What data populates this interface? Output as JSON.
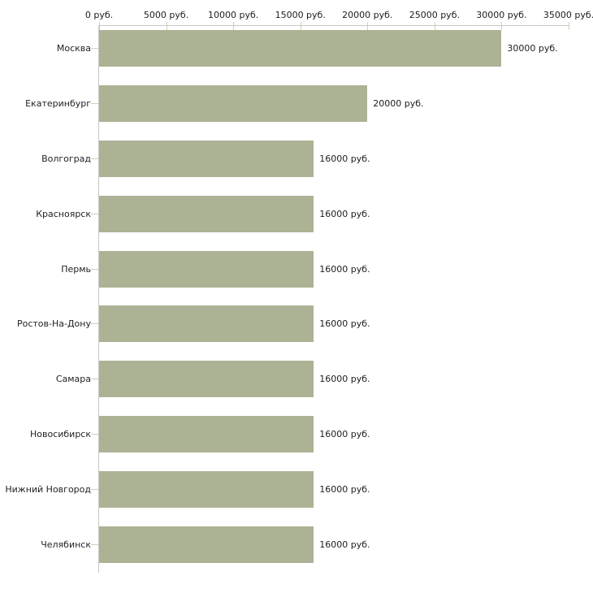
{
  "chart_data": {
    "type": "bar",
    "orientation": "horizontal",
    "categories": [
      "Москва",
      "Екатеринбург",
      "Волгоград",
      "Красноярск",
      "Пермь",
      "Ростов-На-Дону",
      "Самара",
      "Новосибирск",
      "Нижний Новгород",
      "Челябинск"
    ],
    "values": [
      30000,
      20000,
      16000,
      16000,
      16000,
      16000,
      16000,
      16000,
      16000,
      16000
    ],
    "value_labels": [
      "30000 руб.",
      "20000 руб.",
      "16000 руб.",
      "16000 руб.",
      "16000 руб.",
      "16000 руб.",
      "16000 руб.",
      "16000 руб.",
      "16000 руб.",
      "16000 руб."
    ],
    "x_axis": {
      "min": 0,
      "max": 35000,
      "tick_values": [
        0,
        5000,
        10000,
        15000,
        20000,
        25000,
        30000,
        35000
      ],
      "tick_labels": [
        "0 руб.",
        "5000 руб.",
        "10000 руб.",
        "15000 руб.",
        "20000 руб.",
        "25000 руб.",
        "30000 руб.",
        "35000 руб."
      ]
    },
    "title": "",
    "xlabel": "",
    "ylabel": "",
    "legend": "none",
    "grid": false,
    "colors": {
      "bar": "#acb294",
      "axis_line": "#c7c7c2",
      "tick": "#cdd1ab",
      "text": "#1c1c1c",
      "background": "#ffffff"
    }
  }
}
